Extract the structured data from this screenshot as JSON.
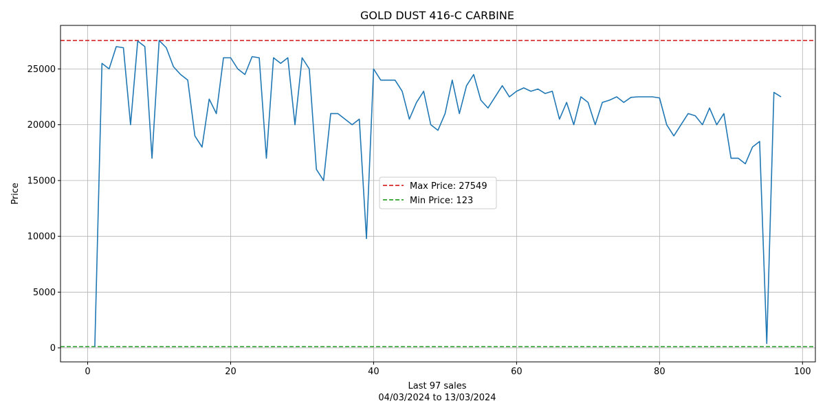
{
  "chart_data": {
    "type": "line",
    "title": "GOLD DUST 416-C CARBINE",
    "xlabel": "Last 97 sales",
    "xlabel_sub": "04/03/2024 to 13/03/2024",
    "ylabel": "Price",
    "xlim": [
      -3.8,
      101.8
    ],
    "ylim": [
      -1250,
      28900
    ],
    "xticks": [
      0,
      20,
      40,
      60,
      80,
      100
    ],
    "yticks": [
      0,
      5000,
      10000,
      15000,
      20000,
      25000
    ],
    "grid": true,
    "legend_position": "center",
    "series": [
      {
        "name": "Price",
        "color": "#1f77b4",
        "x": [
          1,
          2,
          3,
          4,
          5,
          6,
          7,
          8,
          9,
          10,
          11,
          12,
          13,
          14,
          15,
          16,
          17,
          18,
          19,
          20,
          21,
          22,
          23,
          24,
          25,
          26,
          27,
          28,
          29,
          30,
          31,
          32,
          33,
          34,
          35,
          36,
          37,
          38,
          39,
          40,
          41,
          42,
          43,
          44,
          45,
          46,
          47,
          48,
          49,
          50,
          51,
          52,
          53,
          54,
          55,
          56,
          57,
          58,
          59,
          60,
          61,
          62,
          63,
          64,
          65,
          66,
          67,
          68,
          69,
          70,
          71,
          72,
          73,
          74,
          75,
          76,
          77,
          78,
          79,
          80,
          81,
          82,
          83,
          84,
          85,
          86,
          87,
          88,
          89,
          90,
          91,
          92,
          93,
          94,
          95,
          96,
          97
        ],
        "values": [
          123,
          25500,
          25000,
          27000,
          26900,
          20000,
          27500,
          27000,
          17000,
          27549,
          26900,
          25200,
          24500,
          24000,
          19000,
          18000,
          22300,
          21000,
          26000,
          26000,
          25000,
          24500,
          26100,
          26000,
          17000,
          26000,
          25500,
          26000,
          20000,
          26000,
          25000,
          16000,
          15000,
          21000,
          21000,
          20500,
          20000,
          20500,
          9800,
          25000,
          24000,
          24000,
          24000,
          23000,
          20500,
          22000,
          23000,
          20000,
          19500,
          21000,
          24000,
          21000,
          23500,
          24500,
          22200,
          21500,
          22500,
          23500,
          22500,
          23000,
          23300,
          23000,
          23200,
          22800,
          23000,
          20500,
          22000,
          20000,
          22500,
          22000,
          20000,
          22000,
          22200,
          22500,
          22000,
          22450,
          22500,
          22500,
          22500,
          22400,
          20000,
          19000,
          20000,
          21000,
          20800,
          20000,
          21500,
          20000,
          21000,
          17000,
          17000,
          16500,
          18000,
          18500,
          400,
          22900,
          22500
        ]
      }
    ],
    "reference_lines": [
      {
        "label": "Max Price: 27549",
        "value": 27549,
        "color": "#d62728"
      },
      {
        "label": "Min Price: 123",
        "value": 123,
        "color": "#2ca02c"
      }
    ]
  }
}
